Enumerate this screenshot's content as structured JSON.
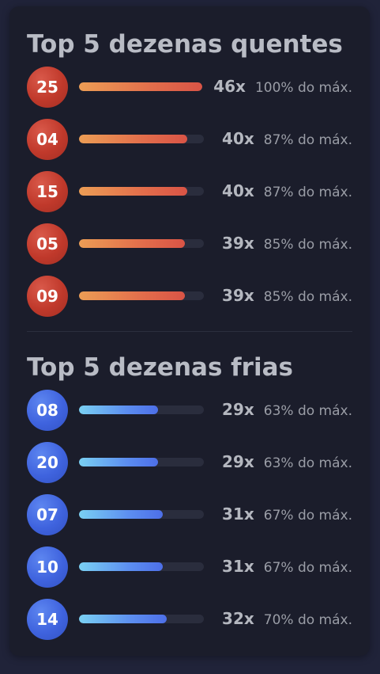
{
  "hot": {
    "title": "Top 5 dezenas quentes",
    "items": [
      {
        "number": "25",
        "count": "46x",
        "pct": "100% do máx.",
        "fraction": 1.0
      },
      {
        "number": "04",
        "count": "40x",
        "pct": "87% do máx.",
        "fraction": 0.87
      },
      {
        "number": "15",
        "count": "40x",
        "pct": "87% do máx.",
        "fraction": 0.87
      },
      {
        "number": "05",
        "count": "39x",
        "pct": "85% do máx.",
        "fraction": 0.85
      },
      {
        "number": "09",
        "count": "39x",
        "pct": "85% do máx.",
        "fraction": 0.85
      }
    ]
  },
  "cold": {
    "title": "Top 5 dezenas frias",
    "items": [
      {
        "number": "08",
        "count": "29x",
        "pct": "63% do máx.",
        "fraction": 0.63
      },
      {
        "number": "20",
        "count": "29x",
        "pct": "63% do máx.",
        "fraction": 0.63
      },
      {
        "number": "07",
        "count": "31x",
        "pct": "67% do máx.",
        "fraction": 0.67
      },
      {
        "number": "10",
        "count": "31x",
        "pct": "67% do máx.",
        "fraction": 0.67
      },
      {
        "number": "14",
        "count": "32x",
        "pct": "70% do máx.",
        "fraction": 0.7
      }
    ]
  },
  "colors": {
    "hot_ball": "#c0392b",
    "cold_ball": "#3f63de",
    "hot_bar_start": "#ec9d55",
    "hot_bar_end": "#d95446",
    "cold_bar_start": "#7ad0f2",
    "cold_bar_end": "#4d6fe8"
  }
}
